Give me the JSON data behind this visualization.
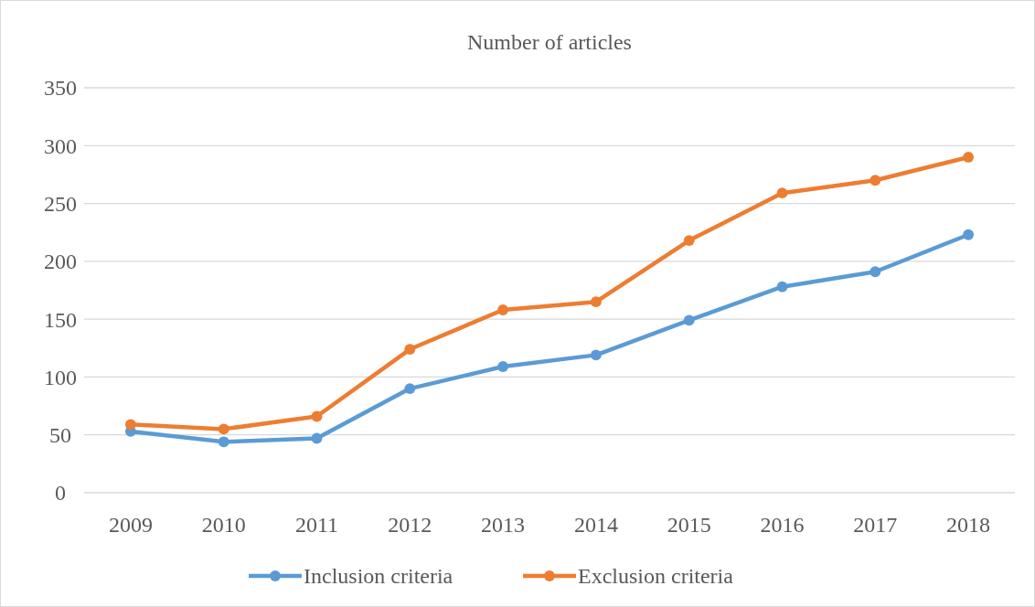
{
  "chart_data": {
    "type": "line",
    "title": "Number of articles",
    "categories": [
      "2009",
      "2010",
      "2011",
      "2012",
      "2013",
      "2014",
      "2015",
      "2016",
      "2017",
      "2018"
    ],
    "series": [
      {
        "name": "Inclusion criteria",
        "color": "#5b9bd5",
        "values": [
          53,
          44,
          47,
          90,
          109,
          119,
          149,
          178,
          191,
          223
        ]
      },
      {
        "name": "Exclusion criteria",
        "color": "#ed7d31",
        "values": [
          59,
          55,
          66,
          124,
          158,
          165,
          218,
          259,
          270,
          290
        ]
      }
    ],
    "ylim": [
      0,
      350
    ],
    "yticks": [
      0,
      50,
      100,
      150,
      200,
      250,
      300,
      350
    ],
    "grid": "y",
    "legend": "bottom",
    "marker": "circle",
    "line_style": "solid"
  }
}
